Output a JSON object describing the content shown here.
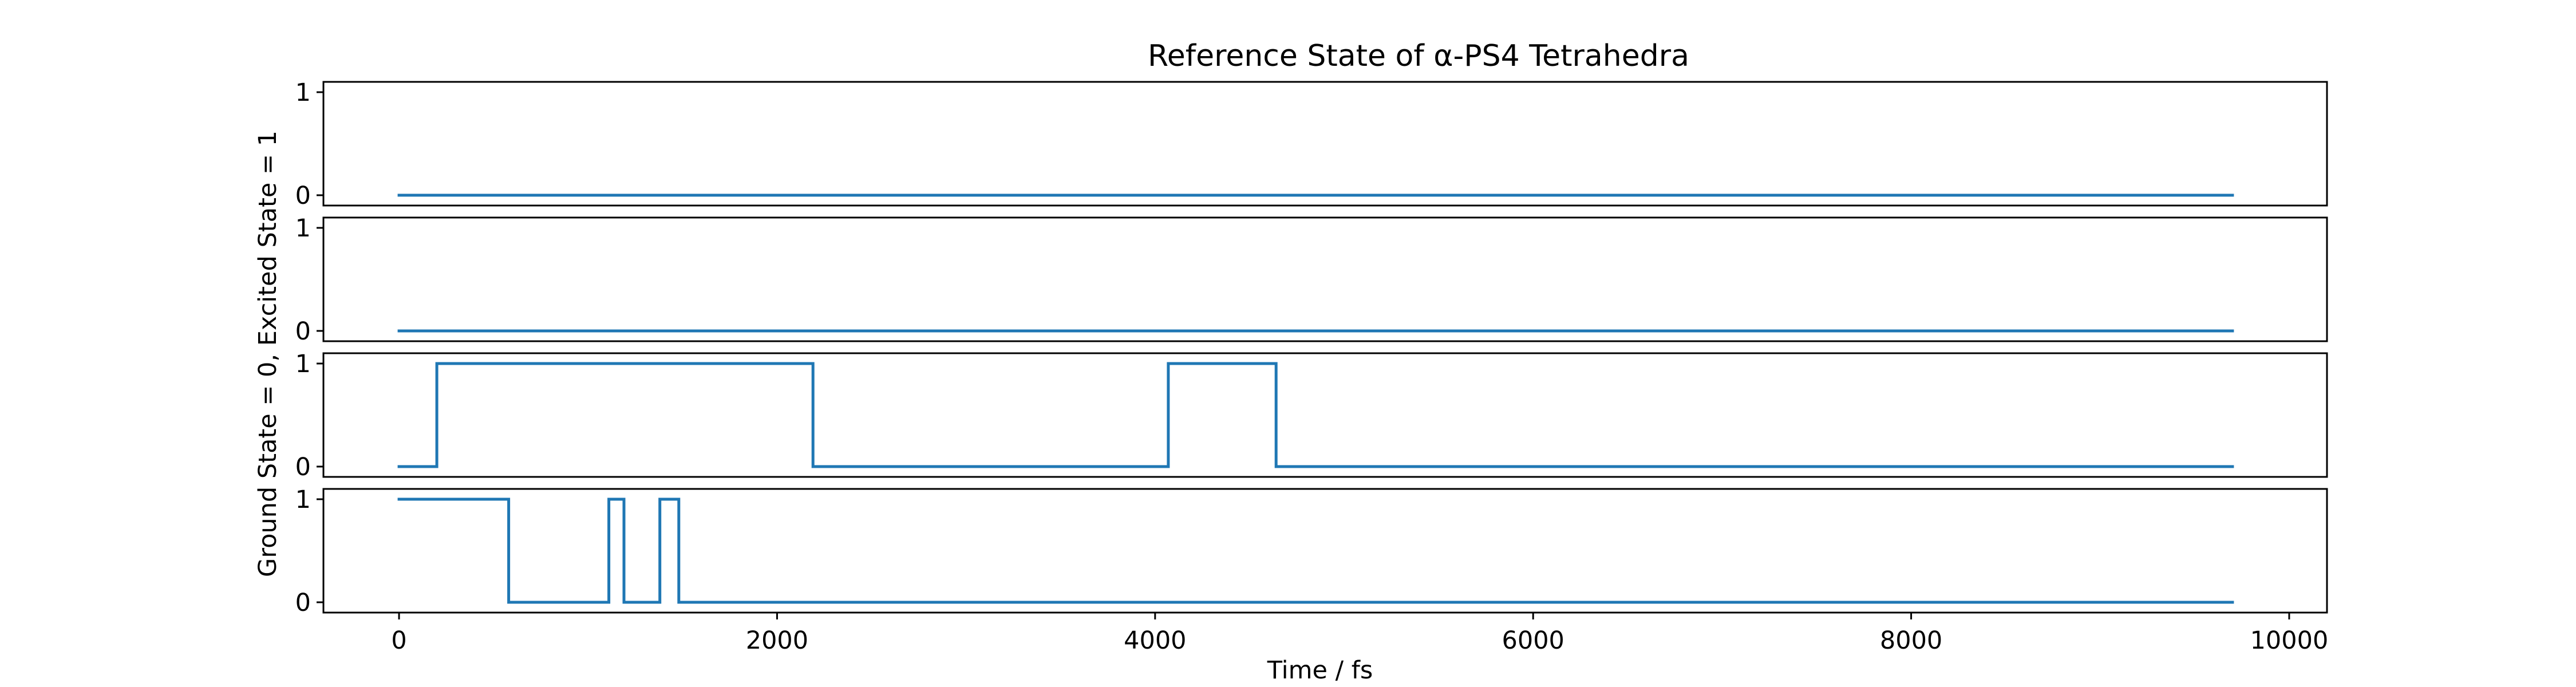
{
  "chart_data": {
    "type": "line",
    "title": "Reference State of α-PS4 Tetrahedra",
    "xlabel": "Time / fs",
    "ylabel": "Ground State = 0, Excited State = 1",
    "xlim": [
      -400,
      10200
    ],
    "ylim": [
      -0.1,
      1.1
    ],
    "xticks": [
      0,
      2000,
      4000,
      6000,
      8000,
      10000
    ],
    "xtick_labels": [
      "0",
      "2000",
      "4000",
      "6000",
      "8000",
      "10000"
    ],
    "yticks": [
      0,
      1
    ],
    "ytick_labels": [
      "0",
      "1"
    ],
    "grid": false,
    "line_color": "#1f77b4",
    "panels": [
      {
        "series": {
          "x": [
            0,
            9700
          ],
          "y": [
            0,
            0
          ]
        }
      },
      {
        "series": {
          "x": [
            0,
            9700
          ],
          "y": [
            0,
            0
          ]
        }
      },
      {
        "series": {
          "x": [
            0,
            200,
            200,
            2190,
            2190,
            4070,
            4070,
            4640,
            4640,
            9700
          ],
          "y": [
            0,
            0,
            1,
            1,
            0,
            0,
            1,
            1,
            0,
            0
          ]
        }
      },
      {
        "series": {
          "x": [
            0,
            580,
            580,
            1110,
            1110,
            1190,
            1190,
            1380,
            1380,
            1480,
            1480,
            9700
          ],
          "y": [
            1,
            1,
            0,
            0,
            1,
            1,
            0,
            0,
            1,
            1,
            0,
            0
          ]
        }
      }
    ]
  }
}
